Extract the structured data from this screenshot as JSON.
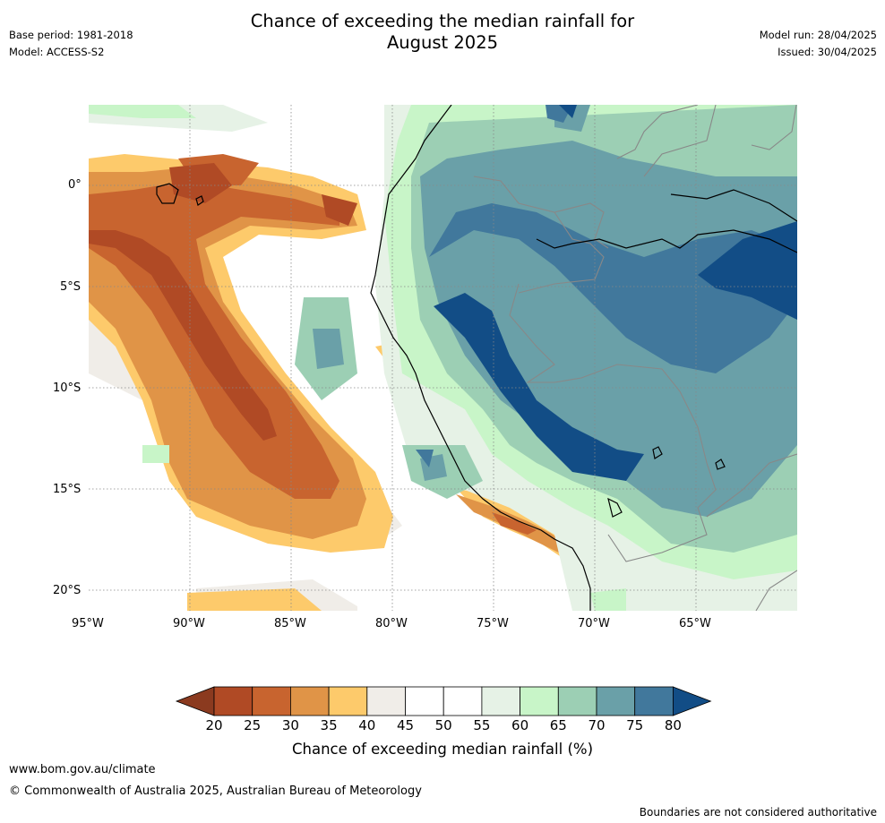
{
  "header": {
    "base_period": "Base period: 1981-2018",
    "model": "Model: ACCESS-S2",
    "title_line1": "Chance of exceeding the median rainfall for",
    "title_line2": "August 2025",
    "model_run": "Model run: 28/04/2025",
    "issued": "Issued: 30/04/2025"
  },
  "map": {
    "lat_labels": [
      "0°",
      "5°S",
      "10°S",
      "15°S",
      "20°S"
    ],
    "lon_labels": [
      "95°W",
      "90°W",
      "85°W",
      "80°W",
      "75°W",
      "70°W",
      "65°W"
    ],
    "land_color": "#5f9aa8",
    "coast_color": "#000000",
    "border_color": "#888888"
  },
  "colorbar": {
    "label": "Chance of exceeding median rainfall (%)",
    "ticks": [
      "20",
      "25",
      "30",
      "35",
      "40",
      "45",
      "50",
      "55",
      "60",
      "65",
      "70",
      "75",
      "80"
    ],
    "colors": [
      "#8b3a1f",
      "#b04a25",
      "#c8642f",
      "#e09447",
      "#fdca6b",
      "#f0ede8",
      "#ffffff",
      "#ffffff",
      "#e6f2e6",
      "#c8f5c8",
      "#9ccfb4",
      "#6aa0a8",
      "#41789c",
      "#124d86"
    ]
  },
  "footer": {
    "url": "www.bom.gov.au/climate",
    "copyright": "© Commonwealth of Australia 2025, Australian Bureau of Meteorology",
    "disclaimer": "Boundaries are not considered authoritative"
  }
}
